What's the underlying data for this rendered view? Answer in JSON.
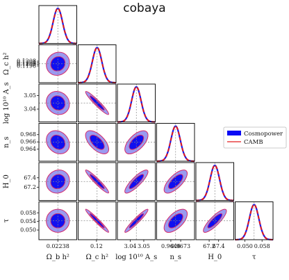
{
  "chart_data": {
    "type": "corner",
    "title": "cobaya",
    "parameters": [
      {
        "key": "ob",
        "label": "Ω_b h²",
        "mean": 0.02238,
        "sigma": 0.00015,
        "ticks": [
          0.02238
        ],
        "tick_labels": [
          "0.02238"
        ]
      },
      {
        "key": "oc",
        "label": "Ω_c h²",
        "mean": 0.12015,
        "sigma": 0.0012,
        "ticks": [
          0.1196,
          0.12,
          0.1204,
          0.1208
        ],
        "tick_labels": [
          "0.1196",
          "0.1200",
          "0.1204",
          "0.1208"
        ],
        "xtick_labels": [
          "0.12"
        ],
        "xticks": [
          0.12
        ]
      },
      {
        "key": "as",
        "label": "log 10¹⁰ A_s",
        "mean": 3.0445,
        "sigma": 0.0035,
        "ticks": [
          3.04,
          3.05
        ],
        "tick_labels": [
          "3.04",
          "3.05"
        ]
      },
      {
        "key": "ns",
        "label": "n_s",
        "mean": 0.9659,
        "sigma": 0.0013,
        "ticks": [
          0.964,
          0.966,
          0.968
        ],
        "tick_labels": [
          "0.964",
          "0.966",
          "0.968"
        ],
        "xticks": [
          0.9646,
          0.9673
        ],
        "xtick_labels": [
          "0.9646",
          "0.9673"
        ]
      },
      {
        "key": "h0",
        "label": "H_0",
        "mean": 67.32,
        "sigma": 0.1,
        "ticks": [
          67.2,
          67.4
        ],
        "tick_labels": [
          "67.2",
          "67.4"
        ]
      },
      {
        "key": "tau",
        "label": "τ",
        "mean": 0.0543,
        "sigma": 0.0022,
        "ticks": [
          0.05,
          0.054,
          0.058
        ],
        "tick_labels": [
          "0.050",
          "0.054",
          "0.058"
        ],
        "xticks": [
          0.05,
          0.058
        ],
        "xtick_labels": [
          "0.050",
          "0.058"
        ]
      }
    ],
    "correlations": {
      "oc|ob": 0.1,
      "as|ob": -0.1,
      "ns|ob": -0.2,
      "h0|ob": 0.1,
      "tau|ob": 0.0,
      "as|oc": -0.95,
      "ns|oc": -0.6,
      "h0|oc": -0.95,
      "tau|oc": -0.97,
      "ns|as": 0.6,
      "h0|as": 0.85,
      "tau|as": 0.95,
      "h0|ns": 0.7,
      "tau|ns": 0.6,
      "tau|h0": 0.85
    },
    "legend": {
      "position": "right",
      "entries": [
        {
          "name": "Cosmopower",
          "color": "#0a0af5",
          "style": "filled"
        },
        {
          "name": "CAMB",
          "color": "#e31a1c",
          "style": "line"
        }
      ]
    },
    "colors": {
      "inner": "#1010f0",
      "outer": "#9a9af0",
      "contour_line": "#d62a6a",
      "camb": "#e31a1c",
      "cosmopower": "#1a1ae8",
      "crosshair": "#888888"
    }
  }
}
